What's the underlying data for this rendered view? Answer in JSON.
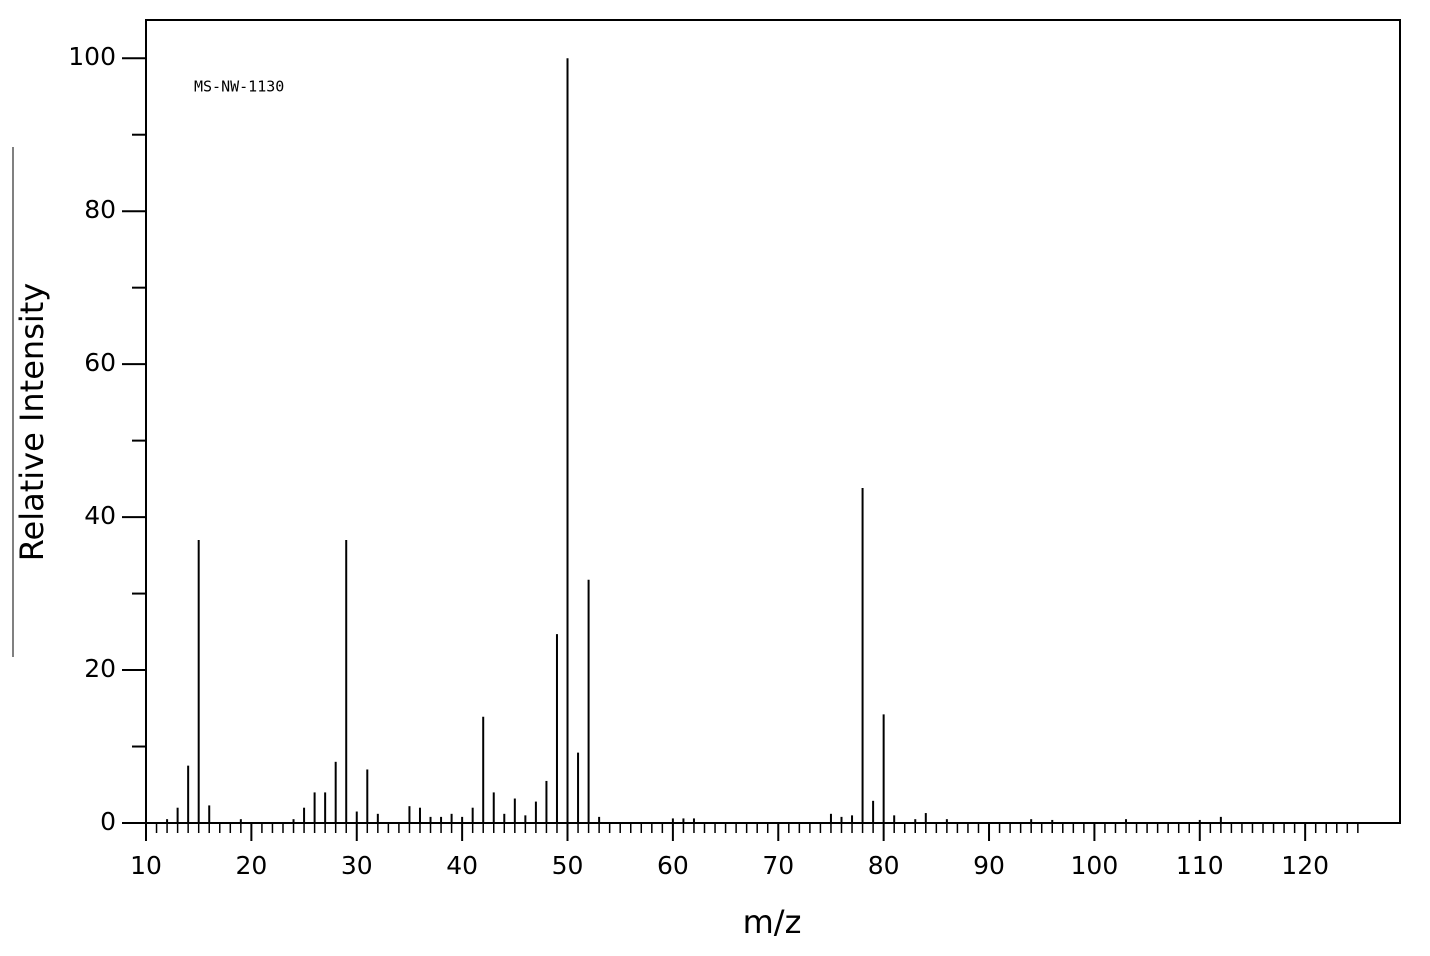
{
  "chart_data": {
    "type": "stem",
    "annotation": "MS-NW-1130",
    "xlabel": "m/z",
    "ylabel": "Relative Intensity",
    "color": "#000000",
    "x": [
      12,
      13,
      14,
      15,
      16,
      19,
      24,
      25,
      26,
      27,
      28,
      29,
      30,
      31,
      32,
      35,
      36,
      37,
      38,
      39,
      40,
      41,
      42,
      43,
      44,
      45,
      46,
      47,
      48,
      49,
      50,
      51,
      52,
      53,
      60,
      61,
      62,
      75,
      76,
      77,
      78,
      79,
      80,
      81,
      83,
      84,
      86,
      94,
      96,
      103,
      110,
      112
    ],
    "values": [
      0.5,
      2,
      7.5,
      37,
      2.3,
      0.5,
      0.5,
      2,
      4,
      4,
      8,
      37,
      1.5,
      7,
      1.2,
      2.2,
      2,
      0.8,
      0.8,
      1.2,
      0.8,
      2,
      13.9,
      4,
      1.2,
      3.2,
      1,
      2.8,
      5.5,
      24.7,
      100,
      9.2,
      31.8,
      0.8,
      0.6,
      0.6,
      0.6,
      1.2,
      0.8,
      1,
      43.8,
      2.9,
      14.2,
      1,
      0.5,
      1.3,
      0.5,
      0.5,
      0.4,
      0.5,
      0.4,
      0.8
    ],
    "xlim": [
      10,
      129
    ],
    "ylim": [
      0,
      105
    ],
    "xticks": [
      10,
      20,
      30,
      40,
      50,
      60,
      70,
      80,
      90,
      100,
      110,
      120
    ],
    "yticks": [
      0,
      20,
      40,
      60,
      80,
      100
    ],
    "xminorticks": [
      11,
      12,
      13,
      14,
      15,
      16,
      17,
      18,
      19,
      21,
      22,
      23,
      24,
      25,
      26,
      27,
      28,
      29,
      31,
      32,
      33,
      34,
      35,
      36,
      37,
      38,
      39,
      41,
      42,
      43,
      44,
      45,
      46,
      47,
      48,
      49,
      51,
      52,
      53,
      54,
      55,
      56,
      57,
      58,
      59,
      61,
      62,
      63,
      64,
      65,
      66,
      67,
      68,
      69,
      71,
      72,
      73,
      74,
      75,
      76,
      77,
      78,
      79,
      81,
      82,
      83,
      84,
      85,
      86,
      87,
      88,
      89,
      91,
      92,
      93,
      94,
      95,
      96,
      97,
      98,
      99,
      101,
      102,
      103,
      104,
      105,
      106,
      107,
      108,
      109,
      111,
      112,
      113,
      114,
      115,
      116,
      117,
      118,
      119,
      121,
      122,
      123,
      124,
      125
    ],
    "yminorticks": [
      10,
      30,
      50,
      70,
      90
    ]
  }
}
